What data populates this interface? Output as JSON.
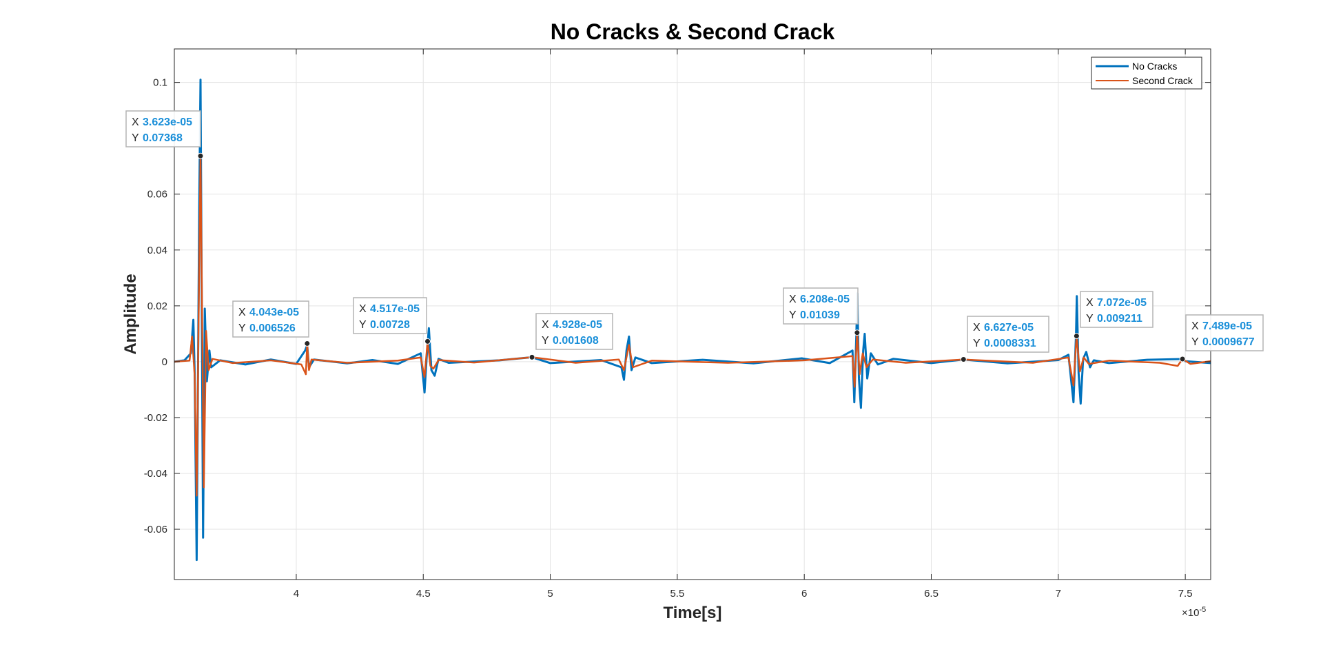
{
  "chart_data": {
    "type": "line",
    "title": "No Cracks & Second Crack",
    "xlabel": "Time[s]",
    "ylabel": "Amplitude",
    "x_exponent_label": "×10",
    "x_exponent_power": "-5",
    "xlim": [
      3.52,
      7.6
    ],
    "ylim": [
      -0.078,
      0.112
    ],
    "xticks": [
      4,
      4.5,
      5,
      5.5,
      6,
      6.5,
      7,
      7.5
    ],
    "xtick_labels": [
      "4",
      "4.5",
      "5",
      "5.5",
      "6",
      "6.5",
      "7",
      "7.5"
    ],
    "yticks": [
      -0.06,
      -0.04,
      -0.02,
      0,
      0.02,
      0.04,
      0.06,
      0.1
    ],
    "ytick_labels": [
      "-0.06",
      "-0.04",
      "-0.02",
      "0",
      "0.02",
      "0.04",
      "0.06",
      "0.1"
    ],
    "grid": true,
    "legend_position": "top-right",
    "series": [
      {
        "name": "No Cracks",
        "color": "#0072bd",
        "points": [
          [
            3.52,
            0
          ],
          [
            3.56,
            0.0005
          ],
          [
            3.585,
            0.003
          ],
          [
            3.595,
            0.015
          ],
          [
            3.6,
            -0.004
          ],
          [
            3.608,
            -0.071
          ],
          [
            3.618,
            0.055
          ],
          [
            3.623,
            0.101
          ],
          [
            3.628,
            0.02
          ],
          [
            3.633,
            -0.063
          ],
          [
            3.64,
            0.019
          ],
          [
            3.648,
            -0.007
          ],
          [
            3.658,
            0.004
          ],
          [
            3.665,
            -0.002
          ],
          [
            3.7,
            0.0005
          ],
          [
            3.8,
            -0.001
          ],
          [
            3.9,
            0.0008
          ],
          [
            4.0,
            -0.0008
          ],
          [
            4.035,
            0.004
          ],
          [
            4.043,
            0.006
          ],
          [
            4.05,
            -0.002
          ],
          [
            4.07,
            0.0008
          ],
          [
            4.2,
            -0.0006
          ],
          [
            4.3,
            0.0006
          ],
          [
            4.4,
            -0.0008
          ],
          [
            4.49,
            0.003
          ],
          [
            4.505,
            -0.011
          ],
          [
            4.515,
            0.004
          ],
          [
            4.522,
            0.012
          ],
          [
            4.532,
            -0.003
          ],
          [
            4.545,
            -0.005
          ],
          [
            4.56,
            0.001
          ],
          [
            4.6,
            -0.0004
          ],
          [
            4.8,
            0.0005
          ],
          [
            4.928,
            0.0016
          ],
          [
            5.0,
            -0.0005
          ],
          [
            5.2,
            0.0006
          ],
          [
            5.28,
            -0.002
          ],
          [
            5.29,
            -0.0065
          ],
          [
            5.3,
            0.004
          ],
          [
            5.31,
            0.009
          ],
          [
            5.32,
            -0.003
          ],
          [
            5.335,
            0.0015
          ],
          [
            5.4,
            -0.0005
          ],
          [
            5.6,
            0.0007
          ],
          [
            5.8,
            -0.0006
          ],
          [
            5.99,
            0.0012
          ],
          [
            6.1,
            -0.0005
          ],
          [
            6.19,
            0.004
          ],
          [
            6.197,
            -0.0145
          ],
          [
            6.205,
            0.01
          ],
          [
            6.209,
            0.0245
          ],
          [
            6.215,
            -0.006
          ],
          [
            6.223,
            -0.0165
          ],
          [
            6.232,
            0.004
          ],
          [
            6.238,
            0.01
          ],
          [
            6.248,
            -0.006
          ],
          [
            6.262,
            0.003
          ],
          [
            6.29,
            -0.001
          ],
          [
            6.35,
            0.001
          ],
          [
            6.5,
            -0.0005
          ],
          [
            6.627,
            0.0008
          ],
          [
            6.8,
            -0.0006
          ],
          [
            7.0,
            0.0006
          ],
          [
            7.04,
            0.0025
          ],
          [
            7.06,
            -0.0145
          ],
          [
            7.07,
            0.01
          ],
          [
            7.073,
            0.0235
          ],
          [
            7.08,
            -0.004
          ],
          [
            7.088,
            -0.015
          ],
          [
            7.098,
            0.001
          ],
          [
            7.11,
            0.0035
          ],
          [
            7.125,
            -0.002
          ],
          [
            7.14,
            0.0005
          ],
          [
            7.2,
            -0.0005
          ],
          [
            7.35,
            0.0007
          ],
          [
            7.489,
            0.00097
          ],
          [
            7.5,
            0.0002
          ],
          [
            7.6,
            -0.0005
          ]
        ]
      },
      {
        "name": "Second Crack",
        "color": "#d95319",
        "points": [
          [
            3.52,
            0
          ],
          [
            3.58,
            0.0004
          ],
          [
            3.59,
            0.009
          ],
          [
            3.6,
            -0.005
          ],
          [
            3.608,
            -0.048
          ],
          [
            3.615,
            0.01
          ],
          [
            3.623,
            0.0737
          ],
          [
            3.63,
            0.012
          ],
          [
            3.636,
            -0.045
          ],
          [
            3.645,
            0.011
          ],
          [
            3.655,
            -0.003
          ],
          [
            3.67,
            0.001
          ],
          [
            3.75,
            -0.0005
          ],
          [
            3.9,
            0.0005
          ],
          [
            4.02,
            -0.001
          ],
          [
            4.038,
            -0.0045
          ],
          [
            4.043,
            0.0065
          ],
          [
            4.05,
            -0.003
          ],
          [
            4.06,
            0.0008
          ],
          [
            4.2,
            -0.0004
          ],
          [
            4.4,
            0.0004
          ],
          [
            4.49,
            0.0015
          ],
          [
            4.505,
            -0.0055
          ],
          [
            4.517,
            0.0073
          ],
          [
            4.528,
            -0.0015
          ],
          [
            4.54,
            -0.0025
          ],
          [
            4.56,
            0.0006
          ],
          [
            4.7,
            -0.0003
          ],
          [
            4.928,
            0.0016
          ],
          [
            5.1,
            -0.0004
          ],
          [
            5.27,
            0.0008
          ],
          [
            5.29,
            -0.003
          ],
          [
            5.31,
            0.006
          ],
          [
            5.325,
            -0.002
          ],
          [
            5.4,
            0.0004
          ],
          [
            5.7,
            -0.0004
          ],
          [
            6.0,
            0.0005
          ],
          [
            6.19,
            0.002
          ],
          [
            6.198,
            -0.009
          ],
          [
            6.208,
            0.0104
          ],
          [
            6.218,
            -0.0045
          ],
          [
            6.23,
            0.003
          ],
          [
            6.245,
            -0.002
          ],
          [
            6.27,
            0.0008
          ],
          [
            6.4,
            -0.0004
          ],
          [
            6.627,
            0.0008
          ],
          [
            6.9,
            -0.0004
          ],
          [
            7.04,
            0.0015
          ],
          [
            7.06,
            -0.0085
          ],
          [
            7.072,
            0.0092
          ],
          [
            7.085,
            -0.0035
          ],
          [
            7.1,
            0.0015
          ],
          [
            7.12,
            -0.0008
          ],
          [
            7.2,
            0.0004
          ],
          [
            7.4,
            -0.0004
          ],
          [
            7.47,
            -0.0015
          ],
          [
            7.489,
            0.00097
          ],
          [
            7.52,
            -0.0008
          ],
          [
            7.6,
            0.0002
          ]
        ]
      }
    ],
    "datatips": [
      {
        "x": 3.623,
        "y": 0.07368,
        "x_text": "3.623e-05",
        "y_text": "0.07368"
      },
      {
        "x": 4.043,
        "y": 0.006526,
        "x_text": "4.043e-05",
        "y_text": "0.006526"
      },
      {
        "x": 4.517,
        "y": 0.00728,
        "x_text": "4.517e-05",
        "y_text": "0.00728"
      },
      {
        "x": 4.928,
        "y": 0.001608,
        "x_text": "4.928e-05",
        "y_text": "0.001608"
      },
      {
        "x": 6.208,
        "y": 0.01039,
        "x_text": "6.208e-05",
        "y_text": "0.01039"
      },
      {
        "x": 6.627,
        "y": 0.0008331,
        "x_text": "6.627e-05",
        "y_text": "0.0008331"
      },
      {
        "x": 7.072,
        "y": 0.009211,
        "x_text": "7.072e-05",
        "y_text": "0.009211"
      },
      {
        "x": 7.489,
        "y": 0.0009677,
        "x_text": "7.489e-05",
        "y_text": "0.0009677"
      }
    ],
    "datatip_key_x": "X",
    "datatip_key_y": "Y"
  }
}
